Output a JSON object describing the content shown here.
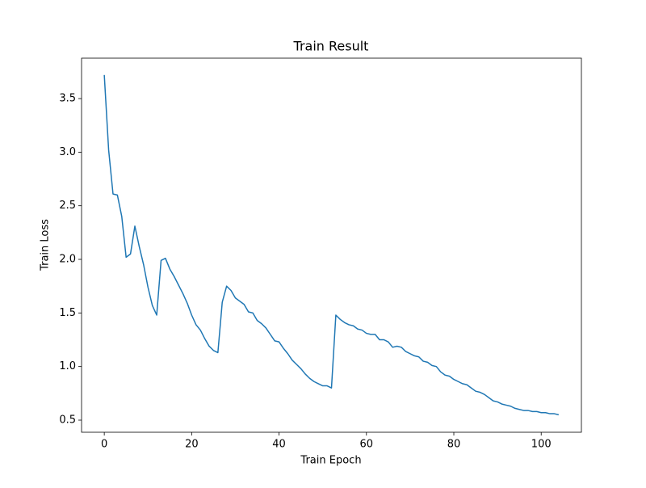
{
  "chart_data": {
    "type": "line",
    "title": "Train Result",
    "xlabel": "Train Epoch",
    "ylabel": "Train Loss",
    "x": [
      0,
      1,
      2,
      3,
      4,
      5,
      6,
      7,
      8,
      9,
      10,
      11,
      12,
      13,
      14,
      15,
      16,
      17,
      18,
      19,
      20,
      21,
      22,
      23,
      24,
      25,
      26,
      27,
      28,
      29,
      30,
      31,
      32,
      33,
      34,
      35,
      36,
      37,
      38,
      39,
      40,
      41,
      42,
      43,
      44,
      45,
      46,
      47,
      48,
      49,
      50,
      51,
      52,
      53,
      54,
      55,
      56,
      57,
      58,
      59,
      60,
      61,
      62,
      63,
      64,
      65,
      66,
      67,
      68,
      69,
      70,
      71,
      72,
      73,
      74,
      75,
      76,
      77,
      78,
      79,
      80,
      81,
      82,
      83,
      84,
      85,
      86,
      87,
      88,
      89,
      90,
      91,
      92,
      93,
      94,
      95,
      96,
      97,
      98,
      99,
      100,
      101,
      102,
      103,
      104
    ],
    "series": [
      {
        "name": "Train Loss",
        "color": "#1f77b4",
        "values": [
          3.72,
          3.02,
          2.61,
          2.6,
          2.4,
          2.02,
          2.05,
          2.31,
          2.12,
          1.95,
          1.74,
          1.57,
          1.48,
          1.99,
          2.01,
          1.91,
          1.84,
          1.76,
          1.68,
          1.59,
          1.48,
          1.39,
          1.34,
          1.26,
          1.19,
          1.15,
          1.13,
          1.6,
          1.75,
          1.71,
          1.64,
          1.61,
          1.58,
          1.51,
          1.5,
          1.43,
          1.4,
          1.36,
          1.3,
          1.24,
          1.23,
          1.17,
          1.12,
          1.06,
          1.02,
          0.98,
          0.93,
          0.89,
          0.86,
          0.84,
          0.82,
          0.82,
          0.8,
          1.48,
          1.44,
          1.41,
          1.39,
          1.38,
          1.35,
          1.34,
          1.31,
          1.3,
          1.3,
          1.25,
          1.25,
          1.23,
          1.18,
          1.19,
          1.18,
          1.14,
          1.12,
          1.1,
          1.09,
          1.05,
          1.04,
          1.01,
          1.0,
          0.95,
          0.92,
          0.91,
          0.88,
          0.86,
          0.84,
          0.83,
          0.8,
          0.77,
          0.76,
          0.74,
          0.71,
          0.68,
          0.67,
          0.65,
          0.64,
          0.63,
          0.61,
          0.6,
          0.59,
          0.59,
          0.58,
          0.58,
          0.57,
          0.57,
          0.56,
          0.56,
          0.55
        ]
      }
    ],
    "xlim": [
      -5.2,
      109.2
    ],
    "ylim": [
      0.387,
      3.877
    ],
    "xticks": [
      0,
      20,
      40,
      60,
      80,
      100
    ],
    "yticks": [
      0.5,
      {
        "value": 1.0,
        "label": "1.0"
      },
      1.5,
      {
        "value": 2.0,
        "label": "2.0"
      },
      2.5,
      {
        "value": 3.0,
        "label": "3.0"
      },
      3.5
    ]
  }
}
